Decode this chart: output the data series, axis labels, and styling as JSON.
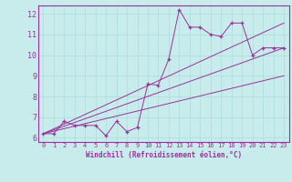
{
  "title": "",
  "xlabel": "Windchill (Refroidissement éolien,°C)",
  "background_color": "#c8ecec",
  "grid_color": "#b0dede",
  "line_color": "#993399",
  "xlim": [
    -0.5,
    23.5
  ],
  "ylim": [
    5.8,
    12.4
  ],
  "xticks": [
    0,
    1,
    2,
    3,
    4,
    5,
    6,
    7,
    8,
    9,
    10,
    11,
    12,
    13,
    14,
    15,
    16,
    17,
    18,
    19,
    20,
    21,
    22,
    23
  ],
  "yticks": [
    6,
    7,
    8,
    9,
    10,
    11,
    12
  ],
  "series1_x": [
    0,
    1,
    2,
    3,
    4,
    5,
    6,
    7,
    8,
    9,
    10,
    11,
    12,
    13,
    14,
    15,
    16,
    17,
    18,
    19,
    20,
    21,
    22,
    23
  ],
  "series1_y": [
    6.2,
    6.2,
    6.8,
    6.6,
    6.6,
    6.6,
    6.1,
    6.8,
    6.3,
    6.5,
    8.6,
    8.55,
    9.8,
    12.2,
    11.35,
    11.35,
    11.0,
    10.9,
    11.55,
    11.55,
    10.0,
    10.35,
    10.35,
    10.35
  ],
  "series2_x": [
    0,
    23
  ],
  "series2_y": [
    6.2,
    10.35
  ],
  "series3_x": [
    0,
    23
  ],
  "series3_y": [
    6.2,
    9.0
  ],
  "series4_x": [
    0,
    23
  ],
  "series4_y": [
    6.2,
    11.55
  ]
}
